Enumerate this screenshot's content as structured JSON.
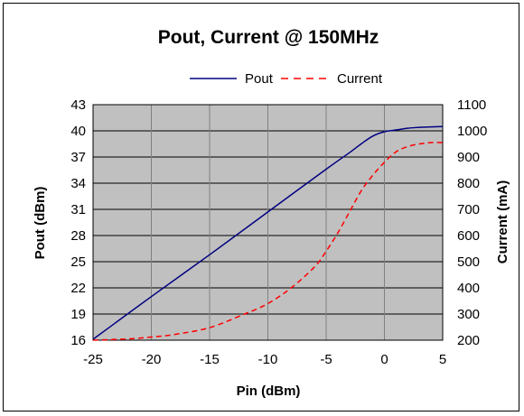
{
  "chart_data": {
    "type": "line",
    "title": "Pout, Current @ 150MHz",
    "xlabel": "Pin (dBm)",
    "ylabel_left": "Pout  (dBm)",
    "ylabel_right": "Current (mA)",
    "xlim": [
      -25,
      5
    ],
    "ylim_left": [
      16,
      43
    ],
    "ylim_right": [
      200,
      1100
    ],
    "x_ticks": [
      "-25",
      "-20",
      "-15",
      "-10",
      "-5",
      "0",
      "5"
    ],
    "y_left_ticks": [
      "16",
      "19",
      "22",
      "25",
      "28",
      "31",
      "34",
      "37",
      "40",
      "43"
    ],
    "y_right_ticks": [
      "200",
      "300",
      "400",
      "500",
      "600",
      "700",
      "800",
      "900",
      "1000",
      "1100"
    ],
    "grid": true,
    "plot_background": "#c0c0c0",
    "legend_position": "top",
    "series": [
      {
        "name": "Pout",
        "axis": "left",
        "color": "#000080",
        "style": "solid",
        "x": [
          -25,
          -20,
          -15,
          -10,
          -5,
          -3,
          -2,
          -1,
          0,
          1,
          2,
          3,
          4,
          5
        ],
        "y": [
          16.1,
          21.0,
          25.8,
          30.7,
          35.6,
          37.5,
          38.5,
          39.4,
          39.9,
          40.1,
          40.3,
          40.4,
          40.45,
          40.5
        ]
      },
      {
        "name": "Current",
        "axis": "right",
        "color": "#ff0000",
        "style": "dashed",
        "x": [
          -25,
          -22,
          -20,
          -18,
          -15,
          -12,
          -10,
          -8,
          -6,
          -5,
          -4,
          -3,
          -2,
          -1,
          0,
          1,
          2,
          3,
          4,
          5
        ],
        "y": [
          200,
          205,
          212,
          222,
          248,
          300,
          340,
          400,
          480,
          540,
          610,
          690,
          770,
          830,
          880,
          920,
          940,
          950,
          955,
          955
        ]
      }
    ]
  }
}
